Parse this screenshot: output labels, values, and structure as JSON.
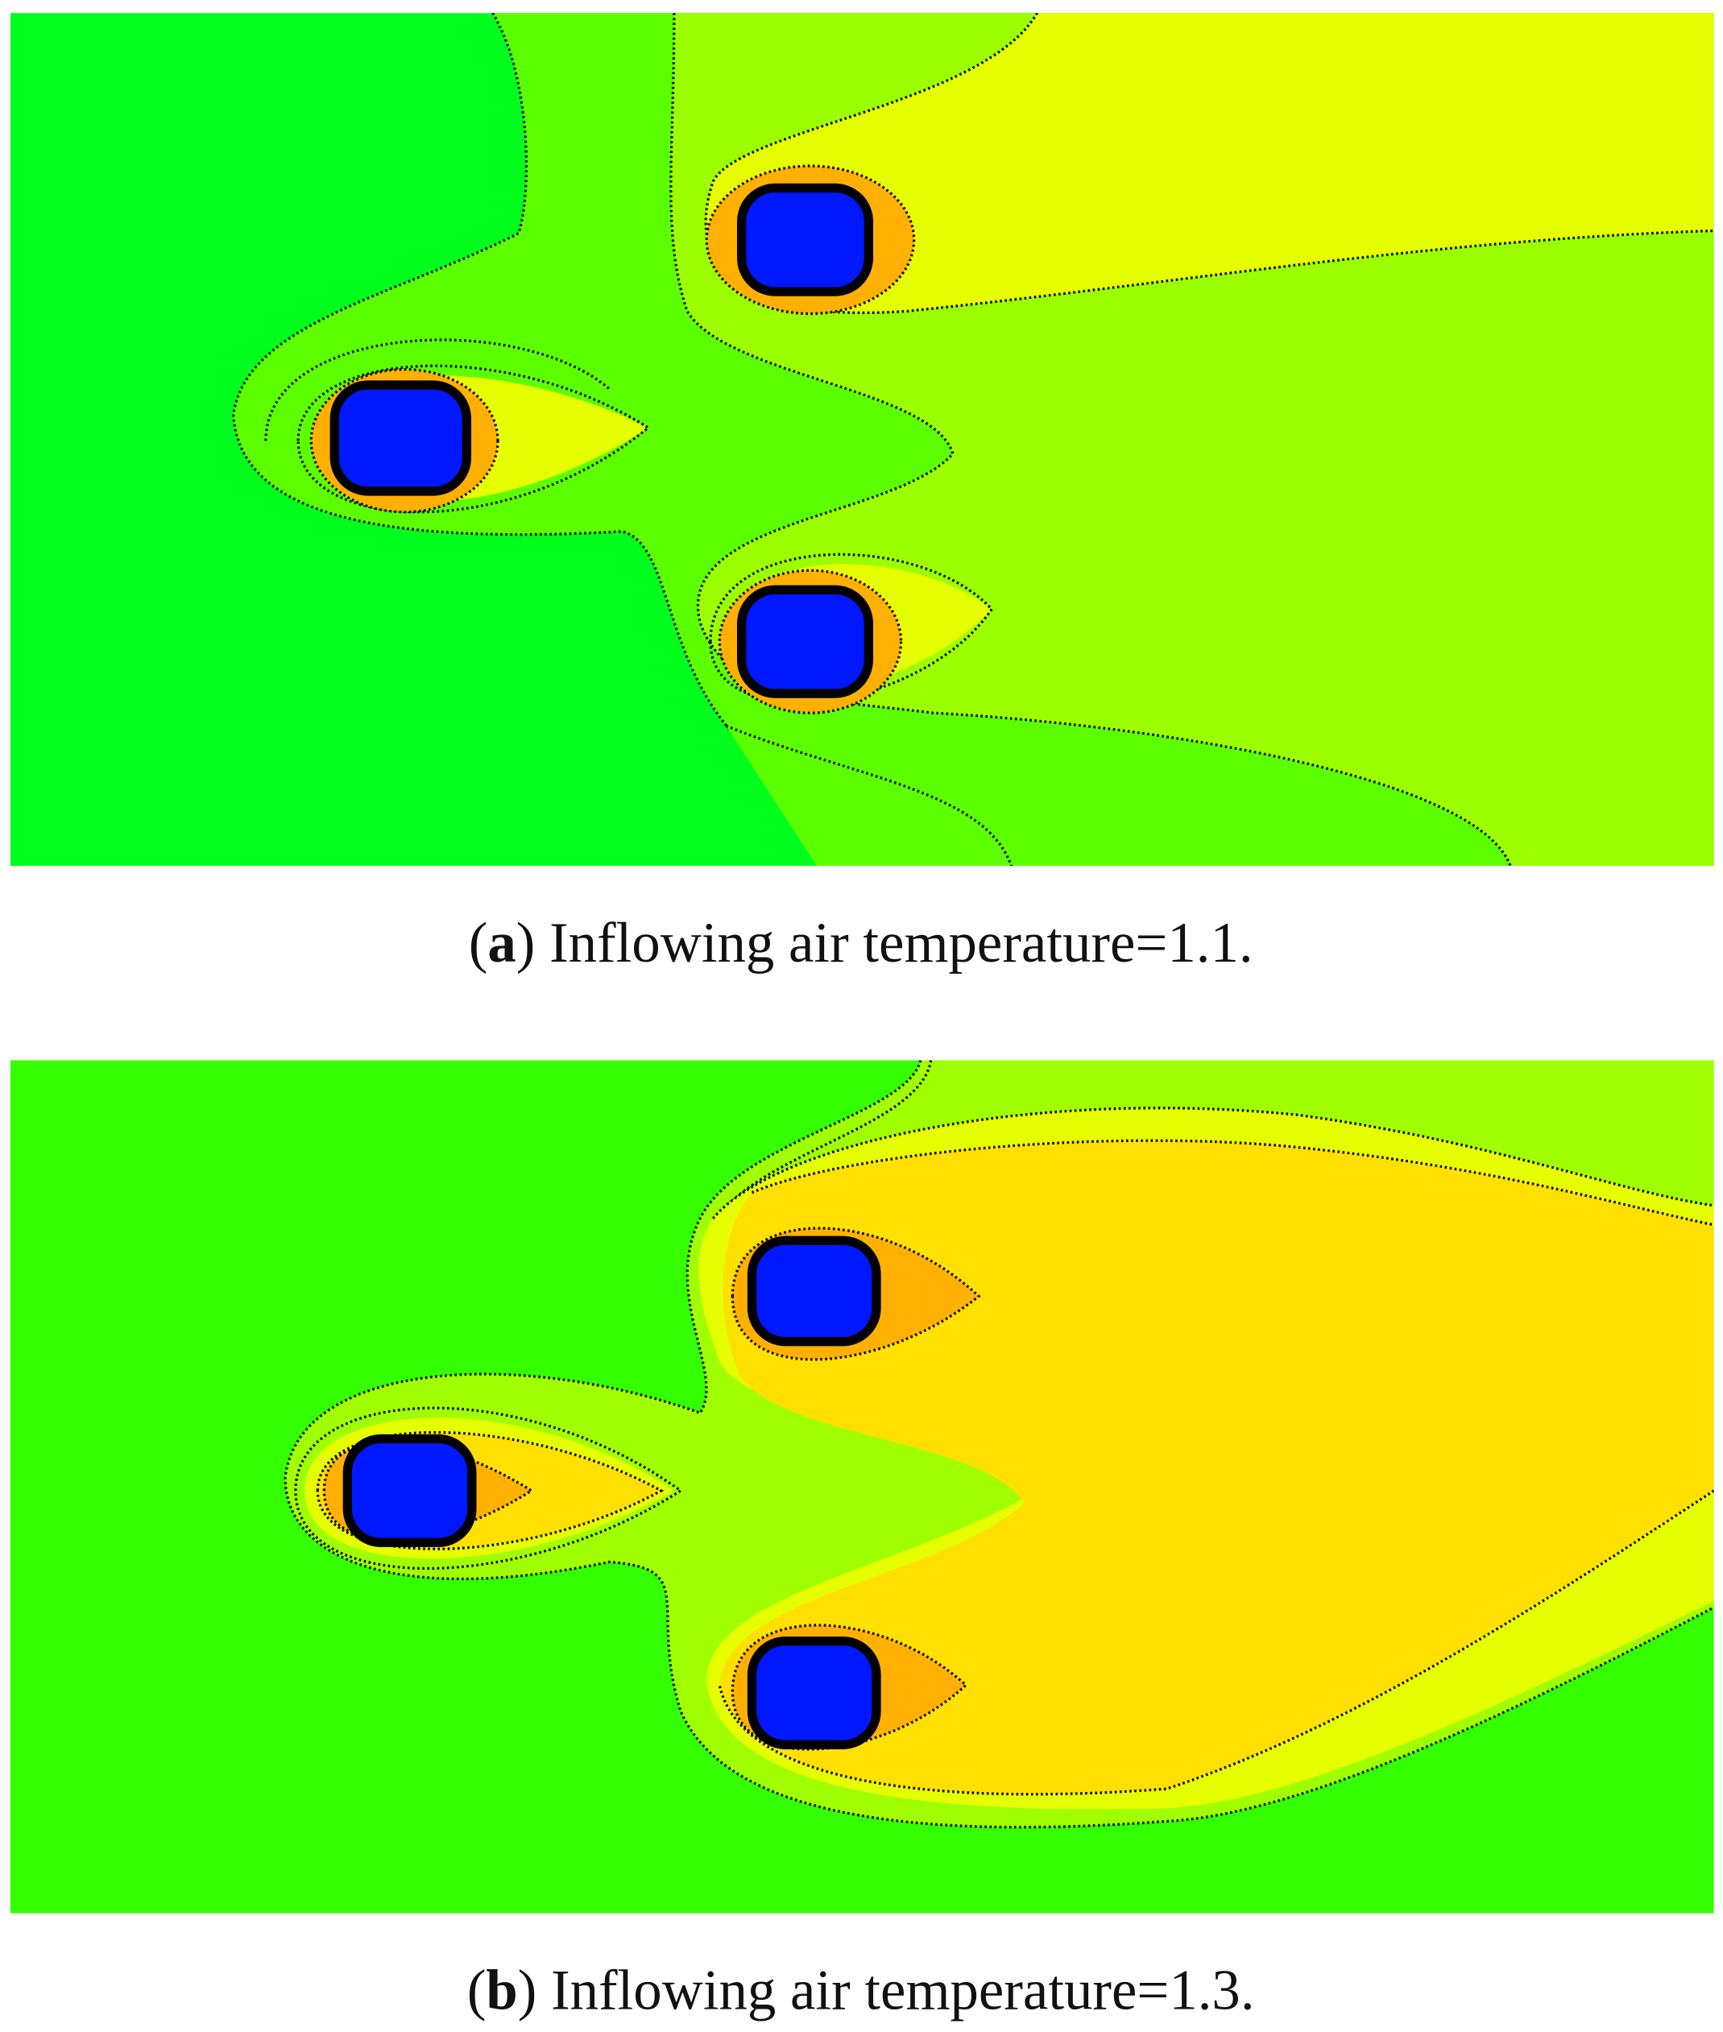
{
  "panels": [
    {
      "open": "(",
      "tag": "a",
      "close": ")",
      "caption": "Inflowing air temperature=1.1."
    },
    {
      "open": "(",
      "tag": "b",
      "close": ")",
      "caption": "Inflowing air temperature=1.3."
    }
  ]
}
